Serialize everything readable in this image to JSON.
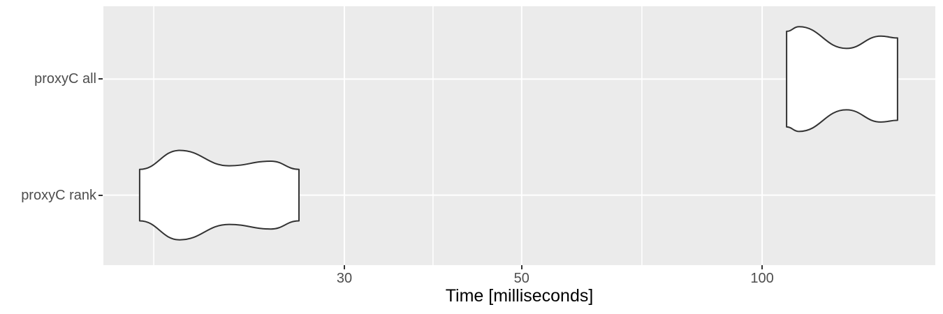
{
  "figure": {
    "background": "#FFFFFF",
    "panel_background": "#EBEBEB",
    "grid_color": "#FFFFFF",
    "violin_fill": "#FFFFFF",
    "violin_stroke": "#333333",
    "axis_text_color": "#4D4D4D",
    "axis_title_color": "#000000",
    "tick_color": "#333333"
  },
  "chart_data": {
    "type": "violin",
    "orientation": "horizontal",
    "title": "",
    "xlabel": "Time [milliseconds]",
    "ylabel": "",
    "x_scale": "log10",
    "x_range": [
      14.98,
      164.7
    ],
    "x_major_ticks": [
      30,
      50,
      100
    ],
    "x_tick_labels": [
      "30",
      "50",
      "100"
    ],
    "x_minor_gridlines": [
      17.32,
      38.73,
      70.71
    ],
    "grid": true,
    "legend": false,
    "categories": [
      {
        "label": "proxyC all",
        "position": 2,
        "time_range_ms": [
          107.3,
          147.7
        ],
        "modes_ms": [
          111.2,
          140.8
        ],
        "antimode_ms": 127.5,
        "profile": [
          {
            "t": 107.3,
            "w": 0.406
          },
          {
            "t": 111.2,
            "w": 0.445
          },
          {
            "t": 127.5,
            "w": 0.261
          },
          {
            "t": 140.8,
            "w": 0.365
          },
          {
            "t": 147.7,
            "w": 0.35
          }
        ]
      },
      {
        "label": "proxyC rank",
        "position": 1,
        "time_range_ms": [
          16.63,
          26.32
        ],
        "modes_ms": [
          18.66,
          24.28
        ],
        "antimode_ms": 21.52,
        "profile": [
          {
            "t": 16.63,
            "w": 0.219
          },
          {
            "t": 18.66,
            "w": 0.38
          },
          {
            "t": 21.52,
            "w": 0.249
          },
          {
            "t": 24.28,
            "w": 0.288
          },
          {
            "t": 26.32,
            "w": 0.219
          }
        ]
      }
    ]
  }
}
